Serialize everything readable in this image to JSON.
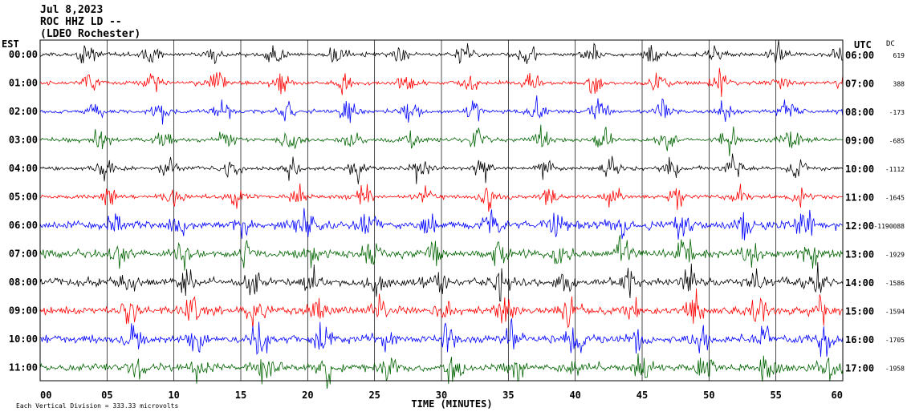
{
  "header": {
    "date": "Jul 8,2023",
    "station": "ROC HHZ LD --",
    "location": "(LDEO Rochester)"
  },
  "left_axis_title": "EST",
  "right_axis_title": "UTC",
  "dc_title": "DC",
  "footer_note": "Each Vertical Division = 333.33 microvolts",
  "chart_data": {
    "type": "line",
    "title": "",
    "xlabel": "TIME (MINUTES)",
    "ylabel": "",
    "xlim": [
      0,
      60
    ],
    "x_ticks": [
      "00",
      "05",
      "10",
      "15",
      "20",
      "25",
      "30",
      "35",
      "40",
      "45",
      "50",
      "55",
      "60"
    ],
    "grid": true,
    "trace_colors": [
      "#000000",
      "#ff0000",
      "#0000ff",
      "#006400"
    ],
    "rows": [
      {
        "est": "00:00",
        "utc": "06:00",
        "dc": "619"
      },
      {
        "est": "01:00",
        "utc": "07:00",
        "dc": "388"
      },
      {
        "est": "02:00",
        "utc": "08:00",
        "dc": "-173"
      },
      {
        "est": "03:00",
        "utc": "09:00",
        "dc": "-685"
      },
      {
        "est": "04:00",
        "utc": "10:00",
        "dc": "-1112"
      },
      {
        "est": "05:00",
        "utc": "11:00",
        "dc": "-1645"
      },
      {
        "est": "06:00",
        "utc": "12:00",
        "dc": "-1190088"
      },
      {
        "est": "07:00",
        "utc": "13:00",
        "dc": "-1929"
      },
      {
        "est": "08:00",
        "utc": "14:00",
        "dc": "-1586"
      },
      {
        "est": "09:00",
        "utc": "15:00",
        "dc": "-1594"
      },
      {
        "est": "10:00",
        "utc": "16:00",
        "dc": "-1705"
      },
      {
        "est": "11:00",
        "utc": "17:00",
        "dc": "-1958"
      }
    ]
  }
}
